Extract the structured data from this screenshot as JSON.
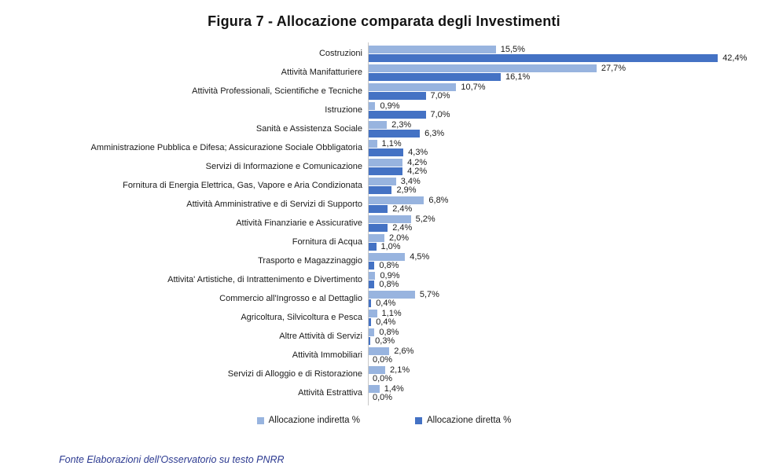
{
  "title": "Figura 7 - Allocazione comparata degli Investimenti",
  "source_note": "Fonte Elaborazioni dell'Osservatorio su testo PNRR",
  "colors": {
    "indiretta": "#98b4df",
    "diretta": "#4472c4",
    "axis": "#c8c8c8",
    "source_text": "#2b3990"
  },
  "legend": {
    "items": [
      {
        "label": "Allocazione indiretta %",
        "color": "#98b4df"
      },
      {
        "label": "Allocazione diretta %",
        "color": "#4472c4"
      }
    ]
  },
  "chart_data": {
    "type": "bar",
    "orientation": "horizontal",
    "title": "Figura 7 - Allocazione comparata degli Investimenti",
    "xlabel": "",
    "ylabel": "",
    "xlim": [
      0,
      45
    ],
    "grid": false,
    "legend_position": "bottom",
    "categories": [
      "Costruzioni",
      "Attività Manifatturiere",
      "Attività Professionali, Scientifiche e Tecniche",
      "Istruzione",
      "Sanità e Assistenza Sociale",
      "Amministrazione Pubblica e Difesa; Assicurazione Sociale Obbligatoria",
      "Servizi di Informazione e Comunicazione",
      "Fornitura di Energia Elettrica, Gas, Vapore e Aria Condizionata",
      "Attività Amministrative e di Servizi di Supporto",
      "Attività Finanziarie e Assicurative",
      "Fornitura di Acqua",
      "Trasporto e Magazzinaggio",
      "Attivita' Artistiche, di Intrattenimento e Divertimento",
      "Commercio all'Ingrosso e al Dettaglio",
      "Agricoltura, Silvicoltura e Pesca",
      "Altre Attività di Servizi",
      "Attività Immobiliari",
      "Servizi di Alloggio e di Ristorazione",
      "Attività Estrattiva"
    ],
    "series": [
      {
        "name": "Allocazione indiretta %",
        "color": "#98b4df",
        "values": [
          15.5,
          27.7,
          10.7,
          0.9,
          2.3,
          1.1,
          4.2,
          3.4,
          6.8,
          5.2,
          2.0,
          4.5,
          0.9,
          5.7,
          1.1,
          0.8,
          2.6,
          2.1,
          1.4
        ],
        "labels": [
          "15,5%",
          "27,7%",
          "10,7%",
          "0,9%",
          "2,3%",
          "1,1%",
          "4,2%",
          "3,4%",
          "6,8%",
          "5,2%",
          "2,0%",
          "4,5%",
          "0,9%",
          "5,7%",
          "1,1%",
          "0,8%",
          "2,6%",
          "2,1%",
          "1,4%"
        ]
      },
      {
        "name": "Allocazione diretta %",
        "color": "#4472c4",
        "values": [
          42.4,
          16.1,
          7.0,
          7.0,
          6.3,
          4.3,
          4.2,
          2.9,
          2.4,
          2.4,
          1.0,
          0.8,
          0.8,
          0.4,
          0.4,
          0.3,
          0.0,
          0.0,
          0.0
        ],
        "labels": [
          "42,4%",
          "16,1%",
          "7,0%",
          "7,0%",
          "6,3%",
          "4,3%",
          "4,2%",
          "2,9%",
          "2,4%",
          "2,4%",
          "1,0%",
          "0,8%",
          "0,8%",
          "0,4%",
          "0,4%",
          "0,3%",
          "0,0%",
          "0,0%",
          "0,0%"
        ]
      }
    ]
  }
}
